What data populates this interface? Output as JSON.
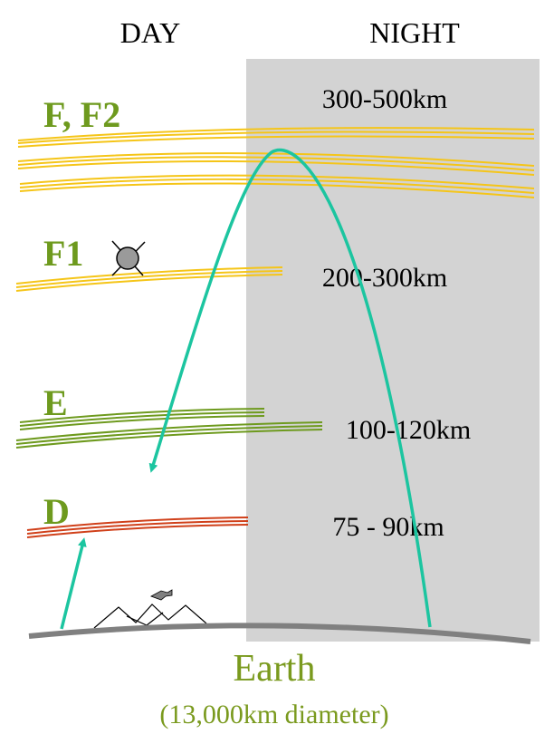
{
  "header": {
    "day_label": "DAY",
    "night_label": "NIGHT"
  },
  "layers": [
    {
      "name": "F, F2",
      "altitude": "300-500km",
      "color": "#F5C518"
    },
    {
      "name": "F1",
      "altitude": "200-300km",
      "color": "#F5C518"
    },
    {
      "name": "E",
      "altitude": "100-120km",
      "color": "#6E9A1E"
    },
    {
      "name": "D",
      "altitude": "75 - 90km",
      "color": "#D0401A"
    }
  ],
  "earth": {
    "label": "Earth",
    "sublabel": "(13,000km diameter)",
    "label_color": "#7A9A1E",
    "surface_color": "#808080"
  },
  "colors": {
    "layer_label": "#6E9A1E",
    "night_shade": "#D3D3D3",
    "signal_path": "#1CC5A0",
    "satellite": "#9A9A9A"
  },
  "icons": [
    "satellite-icon",
    "mountains-icon",
    "airplane-icon"
  ]
}
